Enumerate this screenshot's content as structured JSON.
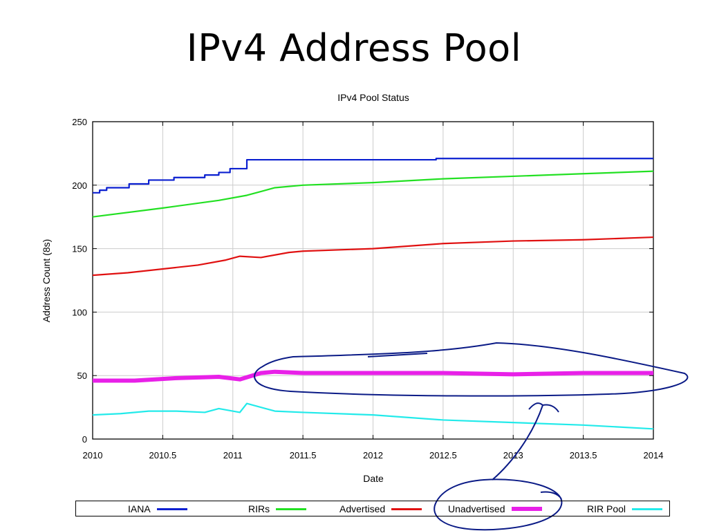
{
  "slide": {
    "title": "IPv4 Address Pool"
  },
  "chart_data": {
    "type": "line",
    "title": "IPv4 Pool Status",
    "xlabel": "Date",
    "ylabel": "Address Count (8s)",
    "xlim": [
      2010,
      2014
    ],
    "ylim": [
      0,
      250
    ],
    "xticks": [
      "2010",
      "2010.5",
      "2011",
      "2011.5",
      "2012",
      "2012.5",
      "2013",
      "2013.5",
      "2014"
    ],
    "yticks": [
      "0",
      "50",
      "100",
      "150",
      "200",
      "250"
    ],
    "grid": true,
    "legend_position": "bottom",
    "series": [
      {
        "name": "IANA",
        "color": "#0a1fd0",
        "step": true,
        "x": [
          2010,
          2010.05,
          2010.1,
          2010.26,
          2010.4,
          2010.58,
          2010.8,
          2010.9,
          2010.98,
          2011.1,
          2012.45,
          2014
        ],
        "y": [
          194,
          196,
          198,
          201,
          204,
          206,
          208,
          210,
          213,
          220,
          221,
          221
        ]
      },
      {
        "name": "RIRs",
        "color": "#22e022",
        "step": false,
        "x": [
          2010,
          2010.5,
          2010.9,
          2011.1,
          2011.3,
          2011.5,
          2012,
          2012.5,
          2013,
          2013.5,
          2014
        ],
        "y": [
          175,
          182,
          188,
          192,
          198,
          200,
          202,
          205,
          207,
          209,
          211
        ]
      },
      {
        "name": "Advertised",
        "color": "#e01010",
        "step": false,
        "x": [
          2010,
          2010.25,
          2010.5,
          2010.75,
          2010.95,
          2011.05,
          2011.2,
          2011.4,
          2011.5,
          2012,
          2012.5,
          2013,
          2013.5,
          2014
        ],
        "y": [
          129,
          131,
          134,
          137,
          141,
          144,
          143,
          147,
          148,
          150,
          154,
          156,
          157,
          159
        ]
      },
      {
        "name": "Unadvertised",
        "color": "#e820e8",
        "step": false,
        "thick": true,
        "x": [
          2010,
          2010.3,
          2010.6,
          2010.9,
          2011.05,
          2011.2,
          2011.3,
          2011.5,
          2012,
          2012.5,
          2013,
          2013.5,
          2014
        ],
        "y": [
          46,
          46,
          48,
          49,
          47,
          52,
          53,
          52,
          52,
          52,
          51,
          52,
          52
        ]
      },
      {
        "name": "RIR Pool",
        "color": "#22eaea",
        "step": false,
        "x": [
          2010,
          2010.2,
          2010.4,
          2010.6,
          2010.8,
          2010.9,
          2011.05,
          2011.1,
          2011.3,
          2011.5,
          2012,
          2012.5,
          2013,
          2013.5,
          2014
        ],
        "y": [
          19,
          20,
          22,
          22,
          21,
          24,
          21,
          28,
          22,
          21,
          19,
          15,
          13,
          11,
          8
        ]
      }
    ]
  }
}
